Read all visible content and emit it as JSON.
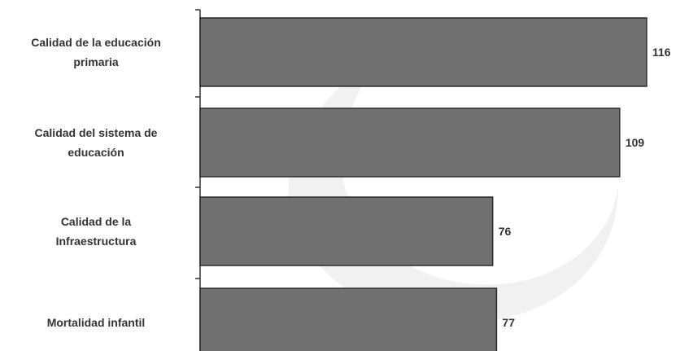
{
  "chart_data": {
    "type": "bar",
    "orientation": "horizontal",
    "categories": [
      [
        "Calidad de la educación",
        "primaria"
      ],
      [
        "Calidad del sistema de",
        "educación"
      ],
      [
        "Calidad de la",
        "Infraestructura"
      ],
      [
        "Mortalidad infantil"
      ]
    ],
    "values": [
      116,
      109,
      76,
      77
    ],
    "data_labels": [
      "116",
      "109",
      "76",
      "77"
    ],
    "title": "",
    "xlabel": "",
    "ylabel": "",
    "xlim": [
      0,
      116
    ],
    "grid": false,
    "legend": "none",
    "colors": {
      "bar_fill": "#707070",
      "bar_stroke": "#2a2a2a",
      "axis": "#333333",
      "text": "#333333",
      "background": "#ffffff",
      "watermark": "#f1f1f1"
    }
  }
}
